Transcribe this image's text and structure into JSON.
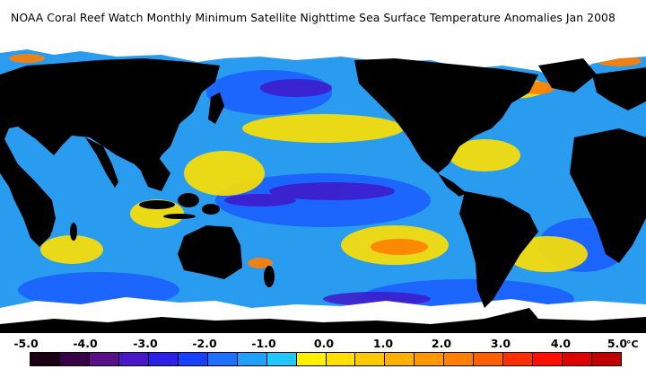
{
  "title": "NOAA Coral Reef Watch Monthly Minimum Satellite Nighttime Sea Surface Temperature Anomalies    Jan 2008",
  "legend": {
    "unit": "°C",
    "ticks": [
      "-5.0",
      "-4.0",
      "-3.0",
      "-2.0",
      "-1.0",
      "0.0",
      "1.0",
      "2.0",
      "3.0",
      "4.0",
      "5.0"
    ],
    "colors": [
      "#1a0010",
      "#3a0048",
      "#5a1088",
      "#4a18c8",
      "#2a20e8",
      "#1840ff",
      "#1e70ff",
      "#20a0ff",
      "#20c8ff",
      "#fff000",
      "#ffe000",
      "#ffc800",
      "#ffb000",
      "#ff9800",
      "#ff8000",
      "#ff6000",
      "#ff3000",
      "#ff1000",
      "#e00000",
      "#c00000"
    ]
  },
  "map_colors": {
    "land": "#000000",
    "ice": "#ffffff",
    "ocean_base": "#2a9cf0",
    "cool": "#1a5cff",
    "cold": "#4018c8",
    "warm": "#ffe000",
    "hot": "#ff8000"
  }
}
